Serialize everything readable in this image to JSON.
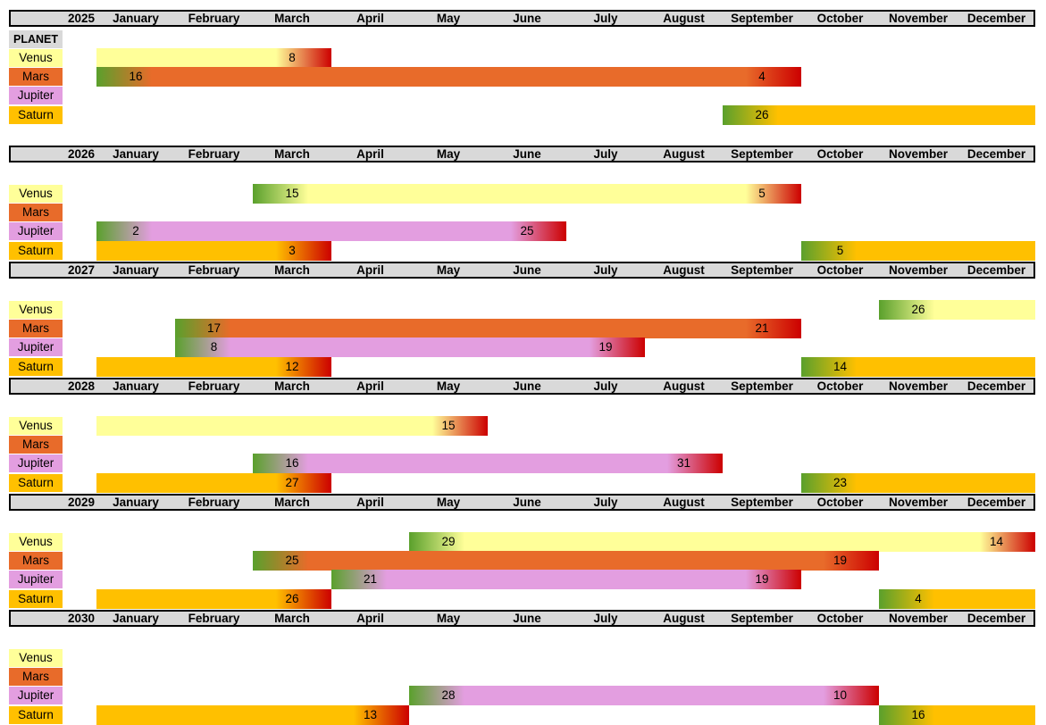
{
  "planet_header": "PLANET",
  "months": [
    "January",
    "February",
    "March",
    "April",
    "May",
    "June",
    "July",
    "August",
    "September",
    "October",
    "November",
    "December"
  ],
  "planets": [
    "Venus",
    "Mars",
    "Jupiter",
    "Saturn"
  ],
  "colors": {
    "Venus": "#ffff99",
    "Mars": "#e86b2a",
    "Jupiter": "#e39ee0",
    "Saturn": "#ffc000",
    "start_green": "#5aa02c",
    "end_red": "#cc0000",
    "header_gray": "#d9d9d9"
  },
  "years": [
    {
      "year": "2025",
      "bars": [
        {
          "planet": "Venus",
          "start_month": 1,
          "start_label": "",
          "end_month": 3,
          "end_label": "8"
        },
        {
          "planet": "Mars",
          "start_month": 1,
          "start_label": "16",
          "end_month": 9,
          "end_label": "4"
        },
        {
          "planet": "Saturn",
          "start_month": 9,
          "start_label": "26",
          "end_month": 12,
          "end_label": ""
        }
      ]
    },
    {
      "year": "2026",
      "bars": [
        {
          "planet": "Venus",
          "start_month": 3,
          "start_label": "15",
          "end_month": 9,
          "end_label": "5"
        },
        {
          "planet": "Jupiter",
          "start_month": 1,
          "start_label": "2",
          "end_month": 6,
          "end_label": "25"
        },
        {
          "planet": "Saturn",
          "start_month": 1,
          "start_label": "",
          "end_month": 3,
          "end_label": "3"
        },
        {
          "planet": "Saturn",
          "start_month": 10,
          "start_label": "5",
          "end_month": 12,
          "end_label": ""
        }
      ]
    },
    {
      "year": "2027",
      "bars": [
        {
          "planet": "Venus",
          "start_month": 11,
          "start_label": "26",
          "end_month": 12,
          "end_label": ""
        },
        {
          "planet": "Mars",
          "start_month": 2,
          "start_label": "17",
          "end_month": 9,
          "end_label": "21"
        },
        {
          "planet": "Jupiter",
          "start_month": 2,
          "start_label": "8",
          "end_month": 7,
          "end_label": "19"
        },
        {
          "planet": "Saturn",
          "start_month": 1,
          "start_label": "",
          "end_month": 3,
          "end_label": "12"
        },
        {
          "planet": "Saturn",
          "start_month": 10,
          "start_label": "14",
          "end_month": 12,
          "end_label": ""
        }
      ]
    },
    {
      "year": "2028",
      "bars": [
        {
          "planet": "Venus",
          "start_month": 1,
          "start_label": "",
          "end_month": 5,
          "end_label": "15"
        },
        {
          "planet": "Jupiter",
          "start_month": 3,
          "start_label": "16",
          "end_month": 8,
          "end_label": "31"
        },
        {
          "planet": "Saturn",
          "start_month": 1,
          "start_label": "",
          "end_month": 3,
          "end_label": "27"
        },
        {
          "planet": "Saturn",
          "start_month": 10,
          "start_label": "23",
          "end_month": 12,
          "end_label": ""
        }
      ]
    },
    {
      "year": "2029",
      "bars": [
        {
          "planet": "Venus",
          "start_month": 5,
          "start_label": "29",
          "end_month": 12,
          "end_label": "14"
        },
        {
          "planet": "Mars",
          "start_month": 3,
          "start_label": "25",
          "end_month": 10,
          "end_label": "19"
        },
        {
          "planet": "Jupiter",
          "start_month": 4,
          "start_label": "21",
          "end_month": 9,
          "end_label": "19"
        },
        {
          "planet": "Saturn",
          "start_month": 1,
          "start_label": "",
          "end_month": 3,
          "end_label": "26"
        },
        {
          "planet": "Saturn",
          "start_month": 11,
          "start_label": "4",
          "end_month": 12,
          "end_label": ""
        }
      ]
    },
    {
      "year": "2030",
      "bars": [
        {
          "planet": "Jupiter",
          "start_month": 5,
          "start_label": "28",
          "end_month": 10,
          "end_label": "10"
        },
        {
          "planet": "Saturn",
          "start_month": 1,
          "start_label": "",
          "end_month": 4,
          "end_label": "13"
        },
        {
          "planet": "Saturn",
          "start_month": 11,
          "start_label": "16",
          "end_month": 12,
          "end_label": ""
        }
      ]
    }
  ]
}
